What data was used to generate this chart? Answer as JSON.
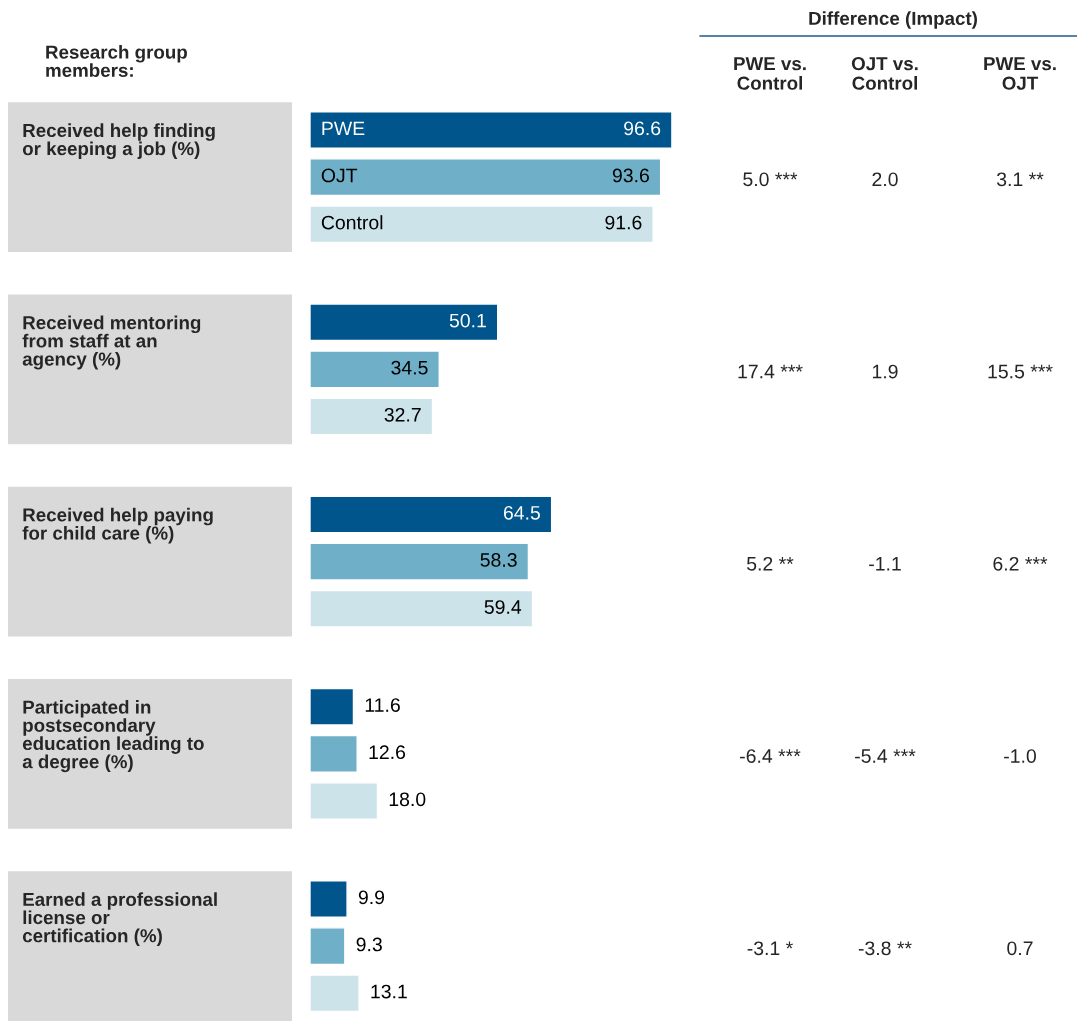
{
  "chart_data": {
    "type": "bar",
    "orientation": "horizontal",
    "categories": [
      "Received help finding\nor keeping a job (%)",
      "Received mentoring\nfrom staff at an\nagency (%)",
      "Received help paying\nfor child care (%)",
      "Participated in\npostsecondary\neducation leading to\na degree (%)",
      "Earned a professional\nlicense or\ncertification (%)"
    ],
    "series": [
      {
        "name": "PWE",
        "color": "#00558c",
        "values": [
          96.6,
          50.1,
          64.5,
          11.6,
          9.9
        ],
        "value_labels": [
          "96.6",
          "50.1",
          "64.5",
          "11.6",
          "9.9"
        ]
      },
      {
        "name": "OJT",
        "color": "#6fb0c8",
        "values": [
          93.6,
          34.5,
          58.3,
          12.6,
          9.3
        ],
        "value_labels": [
          "93.6",
          "34.5",
          "58.3",
          "12.6",
          "9.3"
        ]
      },
      {
        "name": "Control",
        "color": "#cce3ea",
        "values": [
          91.6,
          32.7,
          59.4,
          18.0,
          13.1
        ],
        "value_labels": [
          "91.6",
          "32.7",
          "59.4",
          "18.0",
          "13.1"
        ]
      }
    ],
    "annotations": [
      "Research group\nmembers:",
      "Difference (Impact)",
      "PWE vs.\nControl",
      "OJT vs.\nControl",
      "PWE vs.\nOJT",
      "5.0 ***",
      "2.0",
      "3.1 **",
      "17.4 ***",
      "1.9",
      "15.5 ***",
      "5.2 **",
      "-1.1",
      "6.2 ***",
      "-6.4 ***",
      "-5.4 ***",
      "-1.0",
      "-3.1 *",
      "-3.8 **",
      "0.7"
    ]
  }
}
